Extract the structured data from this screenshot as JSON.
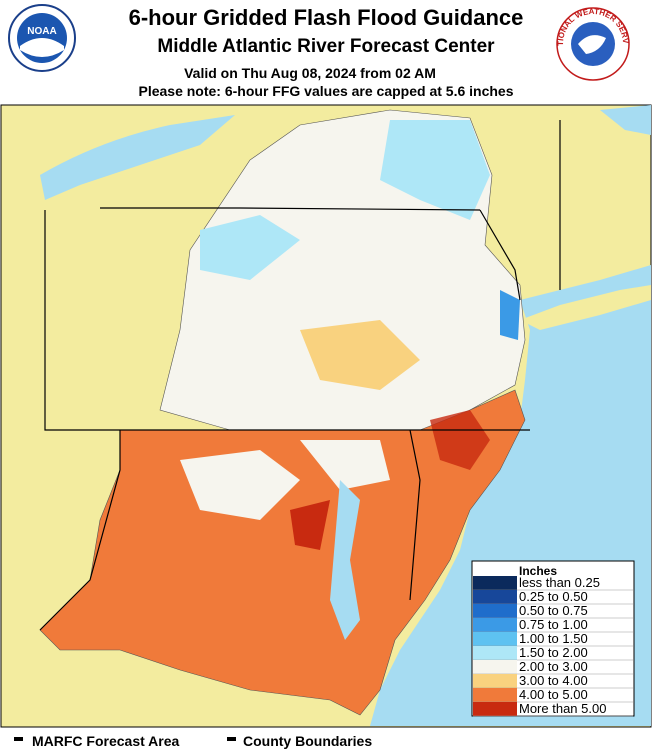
{
  "header": {
    "title": "6-hour Gridded Flash Flood Guidance",
    "subtitle": "Middle Atlantic River Forecast Center",
    "valid": "Valid on Thu Aug 08, 2024 from 02 AM",
    "note": "Please note: 6-hour FFG values are capped at 5.6 inches"
  },
  "logos": {
    "noaa": "NOAA",
    "nws": "NATIONAL WEATHER SERVICE"
  },
  "legend": {
    "title": "Inches",
    "items": [
      {
        "label": "less than 0.25",
        "color": "#0b2a5c"
      },
      {
        "label": "0.25 to 0.50",
        "color": "#17479a"
      },
      {
        "label": "0.50 to 0.75",
        "color": "#1f6dcb"
      },
      {
        "label": "0.75 to 1.00",
        "color": "#3b9ae6"
      },
      {
        "label": "1.00 to 1.50",
        "color": "#5ec2f1"
      },
      {
        "label": "1.50 to 2.00",
        "color": "#aee7f7"
      },
      {
        "label": "2.00 to 3.00",
        "color": "#f6f5ee"
      },
      {
        "label": "3.00 to 4.00",
        "color": "#f9d27f"
      },
      {
        "label": "4.00 to 5.00",
        "color": "#f07a3a"
      },
      {
        "label": "More than 5.00",
        "color": "#c82a10"
      }
    ]
  },
  "footer": {
    "items": [
      "MARFC Forecast Area",
      "County Boundaries"
    ]
  }
}
